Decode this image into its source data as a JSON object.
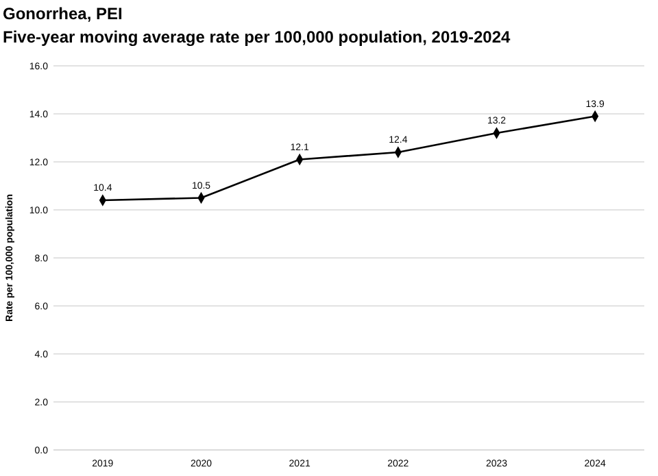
{
  "chart_data": {
    "type": "line",
    "title": "Gonorrhea, PEI",
    "subtitle": "Five-year moving average rate per 100,000 population, 2019-2024",
    "ylabel": "Rate per 100,000 population",
    "categories": [
      "2019",
      "2020",
      "2021",
      "2022",
      "2023",
      "2024"
    ],
    "series": [
      {
        "color": "#000000",
        "values": [
          10.4,
          10.5,
          12.1,
          12.4,
          13.2,
          13.9
        ]
      }
    ],
    "ylim": [
      0,
      16
    ],
    "yticks": [
      {
        "value": 0,
        "label": "0.0"
      },
      {
        "value": 2,
        "label": "2.0"
      },
      {
        "value": 4,
        "label": "4.0"
      },
      {
        "value": 6,
        "label": "6.0"
      },
      {
        "value": 8,
        "label": "8.0"
      },
      {
        "value": 10,
        "label": "10.0"
      },
      {
        "value": 12,
        "label": "12.0"
      },
      {
        "value": 14,
        "label": "14.0"
      },
      {
        "value": 16,
        "label": "16.0"
      }
    ],
    "grid": "y",
    "marker": "diamond",
    "line_style": "solid",
    "data_labels": true
  }
}
